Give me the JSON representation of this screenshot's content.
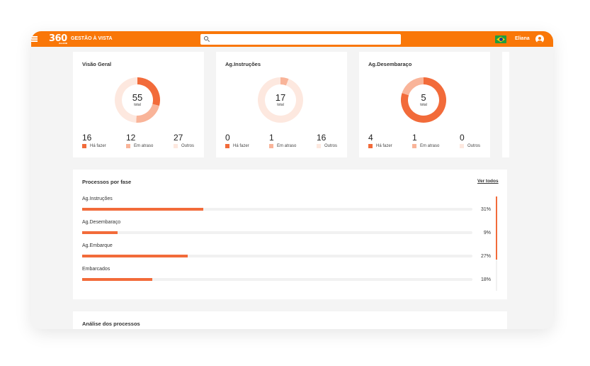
{
  "header": {
    "logo_text": "360",
    "logo_sub": "ALLINK",
    "app_title": "GESTÃO À VISTA",
    "search_placeholder": "",
    "username": "Eliana"
  },
  "colors": {
    "accent": "#f97708",
    "ha_fazer": "#f26b3a",
    "em_atraso": "#f9b499",
    "outros": "#fde8df"
  },
  "cards": [
    {
      "title": "Visão Geral",
      "total": "55",
      "total_label": "total",
      "stats": [
        {
          "value": "16",
          "label": "Há fazer"
        },
        {
          "value": "12",
          "label": "Em atraso"
        },
        {
          "value": "27",
          "label": "Outros"
        }
      ]
    },
    {
      "title": "Ag.Instruções",
      "total": "17",
      "total_label": "total",
      "stats": [
        {
          "value": "0",
          "label": "Há fazer"
        },
        {
          "value": "1",
          "label": "Em atraso"
        },
        {
          "value": "16",
          "label": "Outros"
        }
      ]
    },
    {
      "title": "Ag.Desembaraço",
      "total": "5",
      "total_label": "total",
      "stats": [
        {
          "value": "4",
          "label": "Há fazer"
        },
        {
          "value": "1",
          "label": "Em atraso"
        },
        {
          "value": "0",
          "label": "Outros"
        }
      ]
    }
  ],
  "phases": {
    "title": "Processos por fase",
    "link": "Ver todos",
    "items": [
      {
        "label": "Ag.Instruções",
        "percent": 31,
        "percent_text": "31%"
      },
      {
        "label": "Ag.Desembaraço",
        "percent": 9,
        "percent_text": "9%"
      },
      {
        "label": "Ag.Embarque",
        "percent": 27,
        "percent_text": "27%"
      },
      {
        "label": "Embarcados",
        "percent": 18,
        "percent_text": "18%"
      }
    ]
  },
  "analysis": {
    "title": "Análise dos processos"
  }
}
